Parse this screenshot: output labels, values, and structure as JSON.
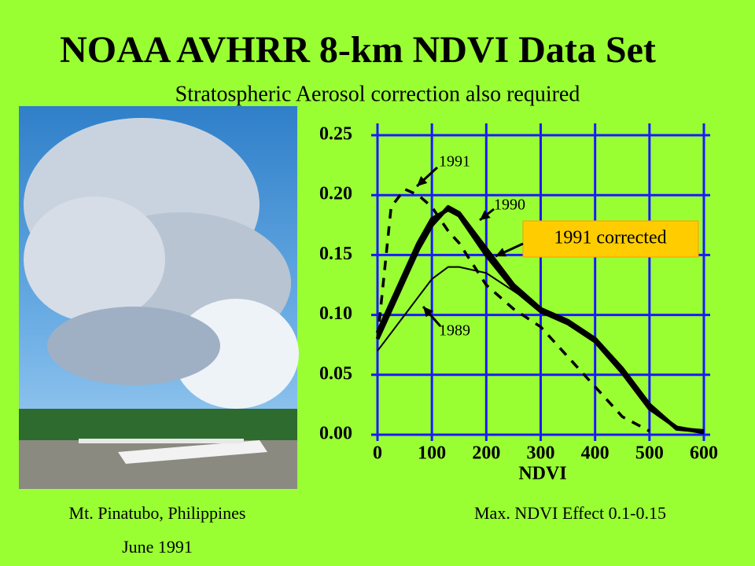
{
  "header": {
    "title": "NOAA AVHRR 8-km NDVI Data Set",
    "subtitle": "Stratospheric Aerosol correction also required"
  },
  "photo": {
    "caption": "Mt. Pinatubo, Philippines",
    "date": "June 1991"
  },
  "note": "Max. NDVI Effect 0.1-0.15",
  "chart_data": {
    "type": "line",
    "xlabel": "NDVI",
    "x": [
      0,
      25,
      50,
      75,
      100,
      130,
      150,
      200,
      250,
      300,
      350,
      400,
      450,
      500,
      550,
      600
    ],
    "series": [
      {
        "name": "1991",
        "color": "#000000",
        "style": "dashed",
        "values": [
          0.08,
          0.19,
          0.205,
          0.2,
          0.19,
          0.17,
          0.16,
          0.125,
          0.105,
          0.09,
          0.065,
          0.04,
          0.015,
          0.003,
          null,
          null
        ]
      },
      {
        "name": "1990",
        "color": "#000000",
        "style": "thick",
        "values": [
          0.08,
          0.105,
          0.13,
          0.155,
          0.175,
          0.19,
          0.185,
          0.155,
          0.125,
          0.105,
          0.095,
          0.08,
          0.055,
          0.025,
          0.005,
          0.003
        ]
      },
      {
        "name": "1989",
        "color": "#000000",
        "style": "thin",
        "values": [
          0.07,
          0.085,
          0.1,
          0.115,
          0.13,
          0.14,
          0.14,
          0.135,
          0.12,
          0.105,
          0.095,
          0.08,
          0.055,
          0.025,
          0.005,
          0.003
        ]
      },
      {
        "name": "1991 corrected",
        "color": "#000000",
        "style": "thick",
        "values": [
          0.085,
          0.11,
          0.135,
          0.16,
          0.18,
          0.188,
          0.183,
          0.15,
          0.122,
          0.103,
          0.093,
          0.078,
          0.052,
          0.022,
          0.006,
          0.002
        ]
      }
    ],
    "xlim": [
      0,
      600
    ],
    "ylim": [
      0,
      0.25
    ],
    "xticks": [
      0,
      100,
      200,
      300,
      400,
      500,
      600
    ],
    "yticks": [
      {
        "value": 0,
        "label": "0.00"
      },
      {
        "value": 0.05,
        "label": "0.05"
      },
      {
        "value": 0.1,
        "label": "0.10"
      },
      {
        "value": 0.15,
        "label": "0.15"
      },
      {
        "value": 0.2,
        "label": "0.20"
      },
      {
        "value": 0.25,
        "label": "0.25"
      }
    ],
    "grid": true,
    "grid_color": "#1a1aff"
  }
}
